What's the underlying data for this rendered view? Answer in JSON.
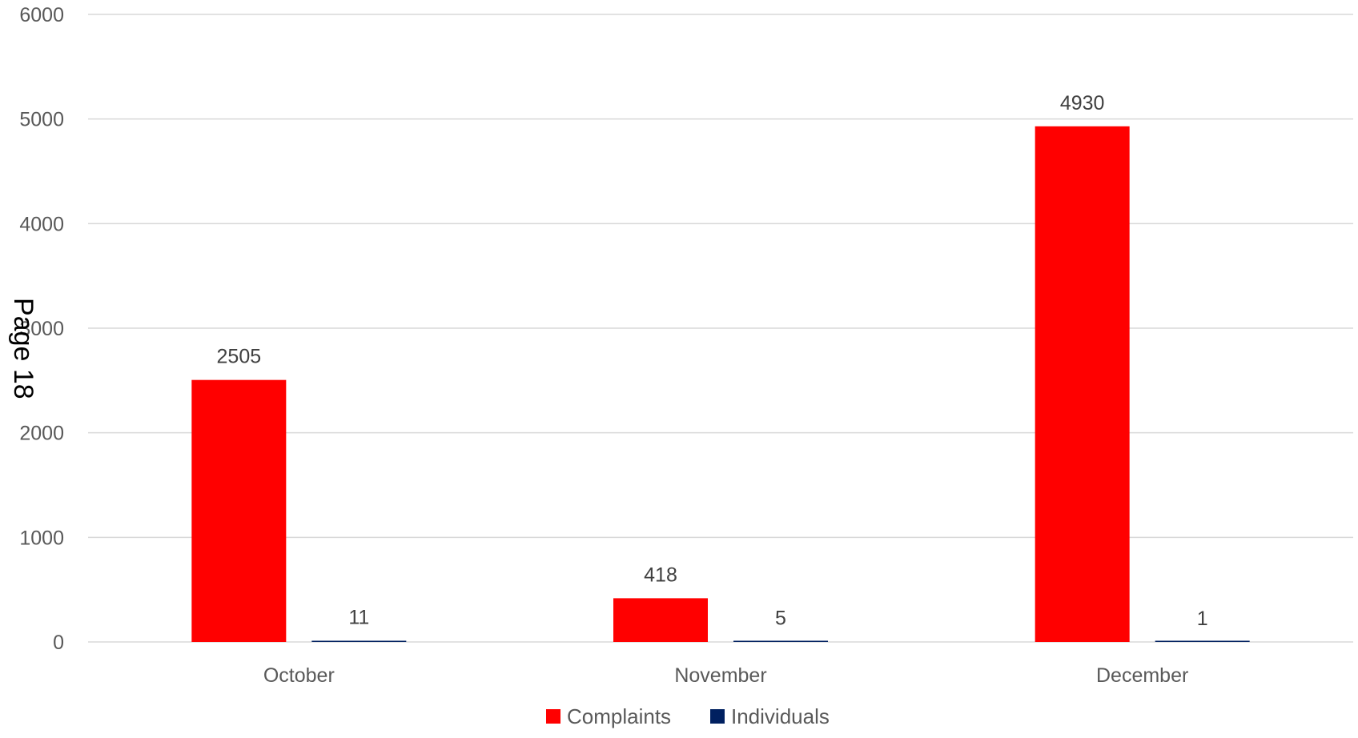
{
  "page_label": "Page 18",
  "chart_data": {
    "type": "bar",
    "categories": [
      "October",
      "November",
      "December"
    ],
    "series": [
      {
        "name": "Complaints",
        "color": "#ff0000",
        "values": [
          2505,
          418,
          4930
        ]
      },
      {
        "name": "Individuals",
        "color": "#002060",
        "values": [
          11,
          5,
          1
        ]
      }
    ],
    "ylim": [
      0,
      6000
    ],
    "yticks": [
      0,
      1000,
      2000,
      3000,
      4000,
      5000,
      6000
    ],
    "grid": true,
    "legend_position": "bottom",
    "gridline_color": "#d9d9d9"
  }
}
